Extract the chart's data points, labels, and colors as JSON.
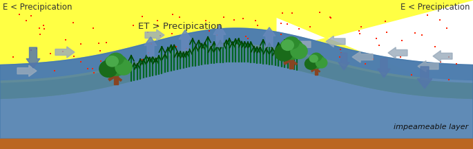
{
  "text_left": "E < Precipication",
  "text_right": "E < Precipication",
  "text_center": "ET > Precipication",
  "text_impermeable": "impeameable layer",
  "bg_color": "#ffffff",
  "figsize": [
    6.85,
    2.17
  ],
  "dpi": 100,
  "yellow_hill": "#ffff44",
  "yellow_green": "#ccdd44",
  "green_belt": "#88bb33",
  "blue_upper": "#88aacc",
  "blue_lower": "#4477aa",
  "brown": "#bb6622",
  "arrow_blue_dark": "#5577aa",
  "arrow_blue_light": "#99aabb",
  "red_dot": "#ff2200",
  "reed_dark": "#005500",
  "reed_light": "#117711",
  "tree_green": "#228822",
  "tree_trunk": "#884422"
}
